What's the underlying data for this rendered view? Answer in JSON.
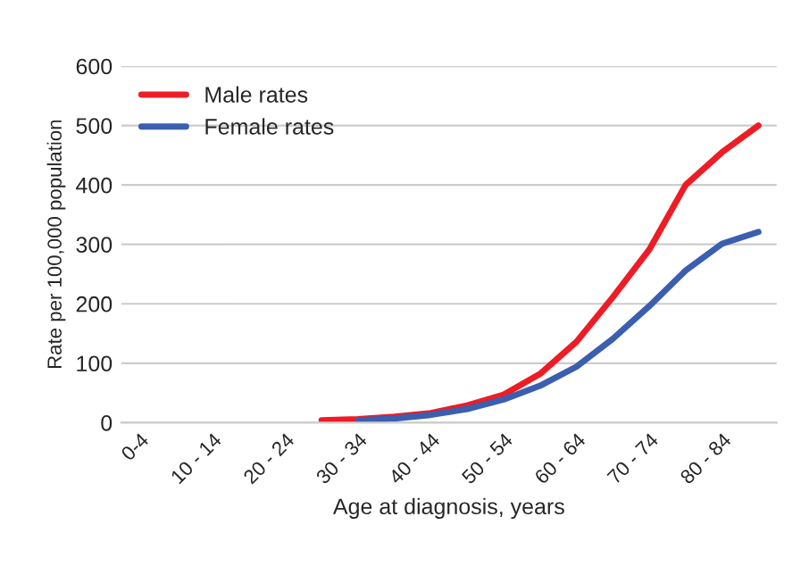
{
  "chart_data": {
    "type": "line",
    "xlabel": "Age at diagnosis, years",
    "ylabel": "Rate per 100,000 population",
    "categories": [
      "0-4",
      null,
      "10 - 14",
      null,
      "20 - 24",
      null,
      "30 - 34",
      null,
      "40 - 44",
      null,
      "50 - 54",
      null,
      "60 - 64",
      null,
      "70 - 74",
      null,
      "80 - 84",
      null
    ],
    "series": [
      {
        "name": "Male rates",
        "color": "#ee1c25",
        "values": [
          null,
          null,
          null,
          null,
          null,
          4,
          6,
          10,
          16,
          29,
          47,
          82,
          136,
          211,
          291,
          400,
          455,
          500
        ]
      },
      {
        "name": "Female rates",
        "color": "#3a5fb0",
        "values": [
          null,
          null,
          null,
          null,
          null,
          null,
          4,
          7,
          13,
          23,
          39,
          62,
          94,
          141,
          196,
          256,
          301,
          321
        ]
      }
    ],
    "ylim": [
      0,
      600
    ],
    "yticks": [
      0,
      100,
      200,
      300,
      400,
      500,
      600
    ],
    "grid": "y",
    "legend": "top left",
    "marker": "none",
    "line_style": "solid"
  }
}
